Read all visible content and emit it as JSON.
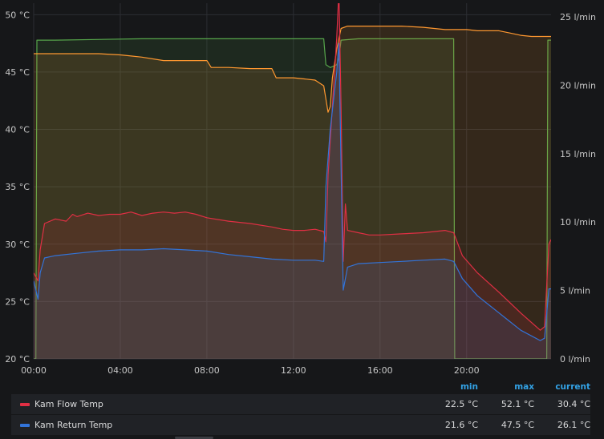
{
  "chart_data": {
    "type": "area",
    "x_ticks": [
      "00:00",
      "04:00",
      "08:00",
      "12:00",
      "16:00",
      "20:00"
    ],
    "x_range_hours": [
      0,
      23.9
    ],
    "y_left": {
      "unit": "°C",
      "ticks": [
        "20 °C",
        "25 °C",
        "30 °C",
        "35 °C",
        "40 °C",
        "45 °C",
        "50 °C"
      ],
      "range": [
        20,
        51
      ]
    },
    "y_right": {
      "unit": "l/min",
      "ticks": [
        "0 l/min",
        "5 l/min",
        "10 l/min",
        "15 l/min",
        "20 l/min",
        "25 l/min"
      ],
      "range": [
        0,
        26
      ]
    },
    "grid": true,
    "series": [
      {
        "name": "Kam Flow Temp",
        "axis": "left",
        "color": "#e02f44",
        "points": [
          [
            0,
            27.5
          ],
          [
            0.2,
            26.8
          ],
          [
            0.3,
            29.5
          ],
          [
            0.5,
            31.8
          ],
          [
            1.0,
            32.2
          ],
          [
            1.5,
            32.0
          ],
          [
            1.8,
            32.6
          ],
          [
            2.0,
            32.4
          ],
          [
            2.5,
            32.7
          ],
          [
            3.0,
            32.5
          ],
          [
            3.5,
            32.6
          ],
          [
            4.0,
            32.6
          ],
          [
            4.5,
            32.8
          ],
          [
            5.0,
            32.5
          ],
          [
            5.5,
            32.7
          ],
          [
            6.0,
            32.8
          ],
          [
            6.5,
            32.7
          ],
          [
            7.0,
            32.8
          ],
          [
            7.5,
            32.6
          ],
          [
            8.0,
            32.3
          ],
          [
            9.0,
            32.0
          ],
          [
            10.0,
            31.8
          ],
          [
            11.0,
            31.5
          ],
          [
            11.5,
            31.3
          ],
          [
            12.0,
            31.2
          ],
          [
            12.5,
            31.2
          ],
          [
            13.0,
            31.3
          ],
          [
            13.4,
            31.1
          ],
          [
            13.5,
            30.2
          ],
          [
            13.6,
            36
          ],
          [
            13.8,
            42
          ],
          [
            14.0,
            48
          ],
          [
            14.1,
            52.1
          ],
          [
            14.2,
            42
          ],
          [
            14.3,
            28.5
          ],
          [
            14.4,
            33.5
          ],
          [
            14.5,
            31.2
          ],
          [
            15.0,
            31.0
          ],
          [
            15.5,
            30.8
          ],
          [
            16.0,
            30.8
          ],
          [
            17.0,
            30.9
          ],
          [
            18.0,
            31.0
          ],
          [
            19.0,
            31.2
          ],
          [
            19.4,
            31.0
          ],
          [
            19.8,
            29.0
          ],
          [
            20.5,
            27.5
          ],
          [
            21.5,
            25.8
          ],
          [
            22.5,
            24.0
          ],
          [
            23.4,
            22.5
          ],
          [
            23.6,
            22.8
          ],
          [
            23.8,
            30.0
          ],
          [
            23.9,
            30.4
          ]
        ]
      },
      {
        "name": "Kam Return Temp",
        "axis": "left",
        "color": "#3274d9",
        "points": [
          [
            0,
            26.8
          ],
          [
            0.2,
            25.2
          ],
          [
            0.3,
            27.5
          ],
          [
            0.5,
            28.8
          ],
          [
            1.0,
            29.0
          ],
          [
            2.0,
            29.2
          ],
          [
            3.0,
            29.4
          ],
          [
            4.0,
            29.5
          ],
          [
            5.0,
            29.5
          ],
          [
            6.0,
            29.6
          ],
          [
            7.0,
            29.5
          ],
          [
            8.0,
            29.4
          ],
          [
            9.0,
            29.1
          ],
          [
            10.0,
            28.9
          ],
          [
            11.0,
            28.7
          ],
          [
            12.0,
            28.6
          ],
          [
            13.0,
            28.6
          ],
          [
            13.4,
            28.5
          ],
          [
            13.5,
            35.0
          ],
          [
            13.7,
            40.0
          ],
          [
            14.0,
            45.0
          ],
          [
            14.1,
            47.5
          ],
          [
            14.3,
            26.0
          ],
          [
            14.5,
            28.0
          ],
          [
            15.0,
            28.3
          ],
          [
            16.0,
            28.4
          ],
          [
            17.0,
            28.5
          ],
          [
            18.0,
            28.6
          ],
          [
            19.0,
            28.7
          ],
          [
            19.4,
            28.5
          ],
          [
            19.8,
            27.0
          ],
          [
            20.5,
            25.5
          ],
          [
            21.5,
            24.0
          ],
          [
            22.5,
            22.5
          ],
          [
            23.4,
            21.6
          ],
          [
            23.6,
            21.8
          ],
          [
            23.8,
            26.1
          ],
          [
            23.9,
            26.1
          ]
        ]
      },
      {
        "name": "",
        "axis": "left",
        "color": "#ff9830",
        "points": [
          [
            0,
            46.6
          ],
          [
            1.0,
            46.6
          ],
          [
            3.0,
            46.6
          ],
          [
            4.0,
            46.5
          ],
          [
            4.5,
            46.4
          ],
          [
            5.0,
            46.3
          ],
          [
            6.0,
            46.0
          ],
          [
            7.0,
            46.0
          ],
          [
            8.0,
            46.0
          ],
          [
            8.2,
            45.4
          ],
          [
            9.0,
            45.4
          ],
          [
            10.0,
            45.3
          ],
          [
            11.0,
            45.3
          ],
          [
            11.2,
            44.5
          ],
          [
            12.0,
            44.5
          ],
          [
            12.5,
            44.4
          ],
          [
            13.0,
            44.3
          ],
          [
            13.4,
            43.8
          ],
          [
            13.6,
            41.5
          ],
          [
            13.7,
            42.0
          ],
          [
            13.8,
            44.5
          ],
          [
            14.0,
            47.0
          ],
          [
            14.2,
            48.8
          ],
          [
            14.5,
            49.0
          ],
          [
            15.0,
            49.0
          ],
          [
            16.0,
            49.0
          ],
          [
            17.0,
            49.0
          ],
          [
            18.0,
            48.9
          ],
          [
            19.0,
            48.7
          ],
          [
            20.0,
            48.7
          ],
          [
            20.5,
            48.6
          ],
          [
            21.5,
            48.6
          ],
          [
            22.0,
            48.4
          ],
          [
            22.5,
            48.2
          ],
          [
            23.0,
            48.1
          ],
          [
            23.9,
            48.1
          ]
        ]
      },
      {
        "name": "",
        "axis": "right",
        "color": "#56a64b",
        "points": [
          [
            0,
            0
          ],
          [
            0.1,
            0
          ],
          [
            0.15,
            23.3
          ],
          [
            1.0,
            23.3
          ],
          [
            5.0,
            23.4
          ],
          [
            10.0,
            23.4
          ],
          [
            12.0,
            23.4
          ],
          [
            13.0,
            23.4
          ],
          [
            13.4,
            23.4
          ],
          [
            13.5,
            21.5
          ],
          [
            13.7,
            21.3
          ],
          [
            14.0,
            21.5
          ],
          [
            14.1,
            22.0
          ],
          [
            14.2,
            23.3
          ],
          [
            15.0,
            23.4
          ],
          [
            17.0,
            23.4
          ],
          [
            19.0,
            23.4
          ],
          [
            19.4,
            23.4
          ],
          [
            19.45,
            0
          ],
          [
            23.7,
            0
          ],
          [
            23.75,
            23.3
          ],
          [
            23.9,
            23.3
          ]
        ]
      }
    ],
    "legend": {
      "placement": "bottom",
      "columns": [
        "min",
        "max",
        "current"
      ],
      "rows": [
        {
          "name": "Kam Flow Temp",
          "color": "#e02f44",
          "min": "22.5 °C",
          "max": "52.1 °C",
          "current": "30.4 °C"
        },
        {
          "name": "Kam Return Temp",
          "color": "#3274d9",
          "min": "21.6 °C",
          "max": "47.5 °C",
          "current": "26.1 °C"
        }
      ]
    }
  }
}
